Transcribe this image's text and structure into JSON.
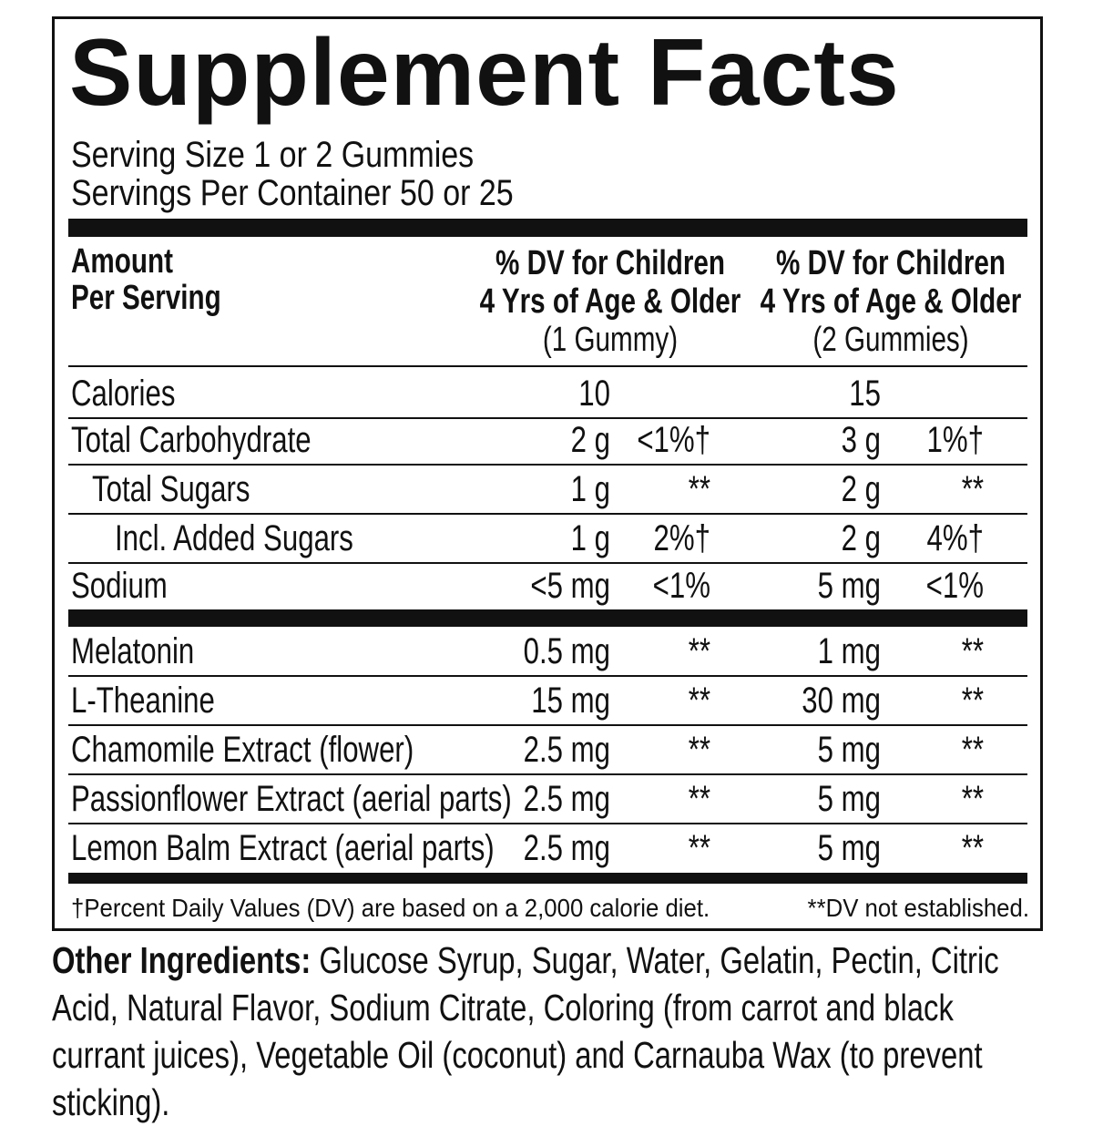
{
  "header": {
    "title": "Supplement Facts",
    "serving_size": "Serving Size 1 or 2 Gummies",
    "servings_per_container": "Servings Per Container 50 or 25"
  },
  "column_headers": {
    "amount": [
      "Amount",
      "Per Serving"
    ],
    "col_1": [
      "% DV for Children",
      "4 Yrs of Age & Older",
      "(1 Gummy)"
    ],
    "col_2": [
      "% DV for Children",
      "4 Yrs of Age & Older",
      "(2 Gummies)"
    ]
  },
  "rows": [
    {
      "name": "Calories",
      "amount_1": "10",
      "amount_2": "15"
    },
    {
      "name": "Total Carbohydrate",
      "amount_1": "2 g",
      "dv_1": "<1%†",
      "amount_2": "3 g",
      "dv_2": "1%†"
    },
    {
      "name": "Total Sugars",
      "amount_1": "1 g",
      "dv_1": "**",
      "amount_2": "2 g",
      "dv_2": "**"
    },
    {
      "name": "Incl. Added Sugars",
      "amount_1": "1 g",
      "dv_1": "2%†",
      "amount_2": "2 g",
      "dv_2": "4%†"
    },
    {
      "name": "Sodium",
      "amount_1": "<5 mg",
      "dv_1": "<1%",
      "amount_2": "5 mg",
      "dv_2": "<1%"
    },
    {
      "name": "Melatonin",
      "amount_1": "0.5 mg",
      "dv_1": "**",
      "amount_2": "1 mg",
      "dv_2": "**"
    },
    {
      "name": "L-Theanine",
      "amount_1": "15 mg",
      "dv_1": "**",
      "amount_2": "30 mg",
      "dv_2": "**"
    },
    {
      "name": "Chamomile Extract (flower)",
      "amount_1": "2.5 mg",
      "dv_1": "**",
      "amount_2": "5 mg",
      "dv_2": "**"
    },
    {
      "name": "Passionflower Extract (aerial parts)",
      "amount_1": "2.5 mg",
      "dv_1": "**",
      "amount_2": "5 mg",
      "dv_2": "**"
    },
    {
      "name": "Lemon Balm Extract (aerial parts)",
      "amount_1": "2.5 mg",
      "dv_1": "**",
      "amount_2": "5 mg",
      "dv_2": "**"
    }
  ],
  "footnotes": [
    "†Percent Daily Values (DV) are based on a 2,000 calorie diet.",
    "**DV not established."
  ],
  "other_ingredients": {
    "label": "Other Ingredients:",
    "text": "Glucose Syrup, Sugar, Water, Gelatin, Pectin, Citric Acid, Natural Flavor, Sodium Citrate, Coloring (from carrot and black currant juices), Vegetable Oil (coconut) and Carnauba Wax (to prevent sticking)."
  }
}
